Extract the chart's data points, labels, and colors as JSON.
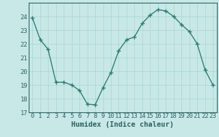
{
  "x": [
    0,
    1,
    2,
    3,
    4,
    5,
    6,
    7,
    8,
    9,
    10,
    11,
    12,
    13,
    14,
    15,
    16,
    17,
    18,
    19,
    20,
    21,
    22,
    23
  ],
  "y": [
    23.9,
    22.3,
    21.6,
    19.2,
    19.2,
    19.0,
    18.6,
    17.6,
    17.55,
    18.8,
    19.9,
    21.5,
    22.3,
    22.5,
    23.5,
    24.1,
    24.5,
    24.4,
    24.0,
    23.4,
    22.9,
    22.0,
    20.1,
    19.0
  ],
  "line_color": "#2d7a6e",
  "marker": "+",
  "markersize": 4,
  "markeredgewidth": 1.0,
  "linewidth": 1.0,
  "bg_color": "#c8e8e8",
  "grid_color": "#b0d8d8",
  "xlabel": "Humidex (Indice chaleur)",
  "ylim": [
    17,
    25
  ],
  "xlim": [
    -0.5,
    23.5
  ],
  "yticks": [
    17,
    18,
    19,
    20,
    21,
    22,
    23,
    24
  ],
  "xticks": [
    0,
    1,
    2,
    3,
    4,
    5,
    6,
    7,
    8,
    9,
    10,
    11,
    12,
    13,
    14,
    15,
    16,
    17,
    18,
    19,
    20,
    21,
    22,
    23
  ],
  "tick_color": "#2d6060",
  "label_color": "#2d6060",
  "xlabel_fontsize": 7.5,
  "tick_fontsize": 6.5,
  "spine_color": "#2d6060"
}
